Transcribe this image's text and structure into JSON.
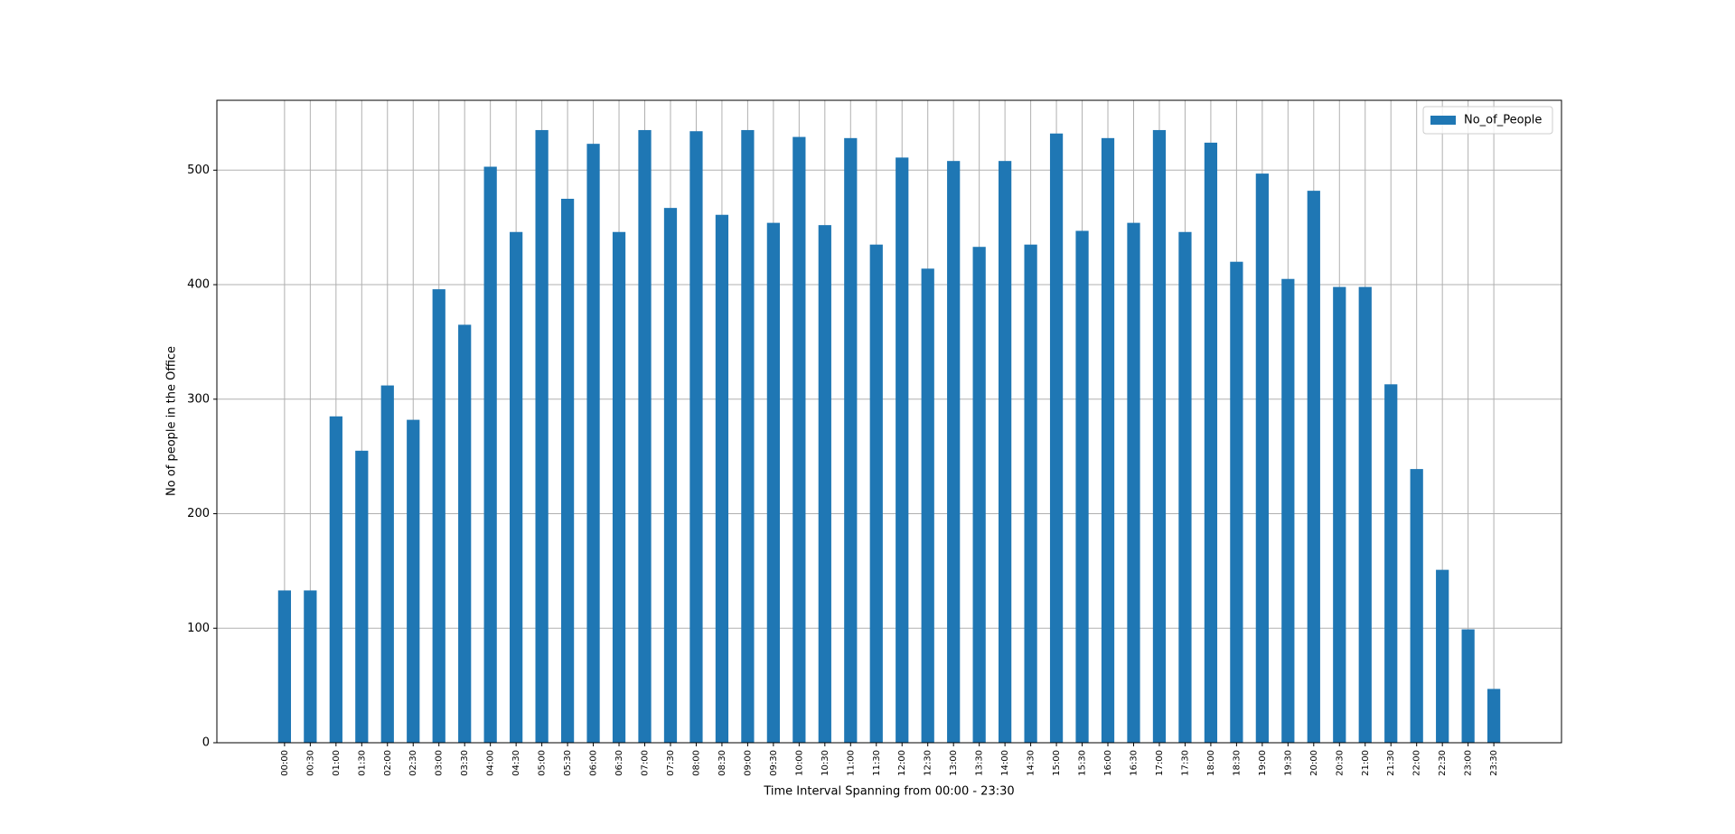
{
  "chart_data": {
    "type": "bar",
    "xlabel": "Time Interval Spanning from 00:00 - 23:30",
    "ylabel": "No of people in the Office",
    "categories": [
      "00:00",
      "00:30",
      "01:00",
      "01:30",
      "02:00",
      "02:30",
      "03:00",
      "03:30",
      "04:00",
      "04:30",
      "05:00",
      "05:30",
      "06:00",
      "06:30",
      "07:00",
      "07:30",
      "08:00",
      "08:30",
      "09:00",
      "09:30",
      "10:00",
      "10:30",
      "11:00",
      "11:30",
      "12:00",
      "12:30",
      "13:00",
      "13:30",
      "14:00",
      "14:30",
      "15:00",
      "15:30",
      "16:00",
      "16:30",
      "17:00",
      "17:30",
      "18:00",
      "18:30",
      "19:00",
      "19:30",
      "20:00",
      "20:30",
      "21:00",
      "21:30",
      "22:00",
      "22:30",
      "23:00",
      "23:30"
    ],
    "series": [
      {
        "name": "No_of_People",
        "color": "#1f77b4",
        "values": [
          133,
          133,
          285,
          255,
          312,
          282,
          396,
          365,
          503,
          446,
          535,
          475,
          523,
          446,
          535,
          467,
          534,
          461,
          535,
          454,
          529,
          452,
          528,
          435,
          511,
          414,
          508,
          433,
          508,
          435,
          532,
          447,
          528,
          454,
          535,
          446,
          524,
          420,
          497,
          405,
          482,
          398,
          398,
          313,
          239,
          151,
          99,
          47
        ]
      }
    ],
    "ylim": [
      0,
      561
    ],
    "yticks": [
      0,
      100,
      200,
      300,
      400,
      500
    ],
    "grid": true,
    "legend": "upper right"
  }
}
